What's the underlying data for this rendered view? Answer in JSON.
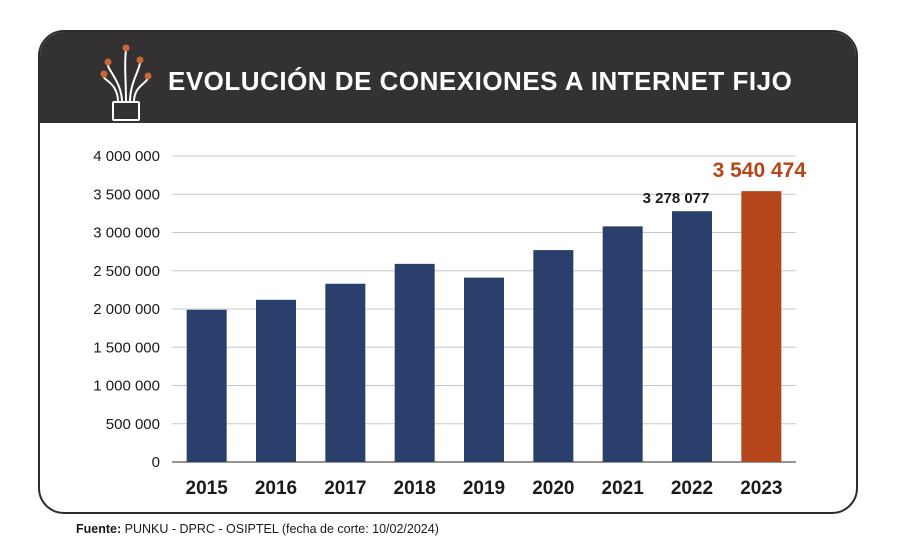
{
  "header": {
    "title": "EVOLUCIÓN DE CONEXIONES A INTERNET FIJO",
    "icon": "fiber-optic-icon"
  },
  "source": {
    "label": "Fuente:",
    "text": "PUNKU - DPRC - OSIPTEL (fecha de corte: 10/02/2024)"
  },
  "colors": {
    "header_bg": "#333132",
    "bar": "#2a3f6b",
    "highlight": "#b5451b",
    "icon_dot": "#c8673a"
  },
  "chart_data": {
    "type": "bar",
    "categories": [
      "2015",
      "2016",
      "2017",
      "2018",
      "2019",
      "2020",
      "2021",
      "2022",
      "2023"
    ],
    "values": [
      1990000,
      2120000,
      2330000,
      2590000,
      2410000,
      2770000,
      3080000,
      3278077,
      3540474
    ],
    "ylim": [
      0,
      4000000
    ],
    "yticks": [
      0,
      500000,
      1000000,
      1500000,
      2000000,
      2500000,
      3000000,
      3500000,
      4000000
    ],
    "ytick_labels": [
      "0",
      "500 000",
      "1 000 000",
      "1 500 000",
      "2 000 000",
      "2 500 000",
      "3 000 000",
      "3 500 000",
      "4 000 000"
    ],
    "data_labels": [
      {
        "category": "2022",
        "text": "3 278 077"
      },
      {
        "category": "2023",
        "text": "3 540 474"
      }
    ],
    "highlight_category": "2023",
    "grid": true
  }
}
